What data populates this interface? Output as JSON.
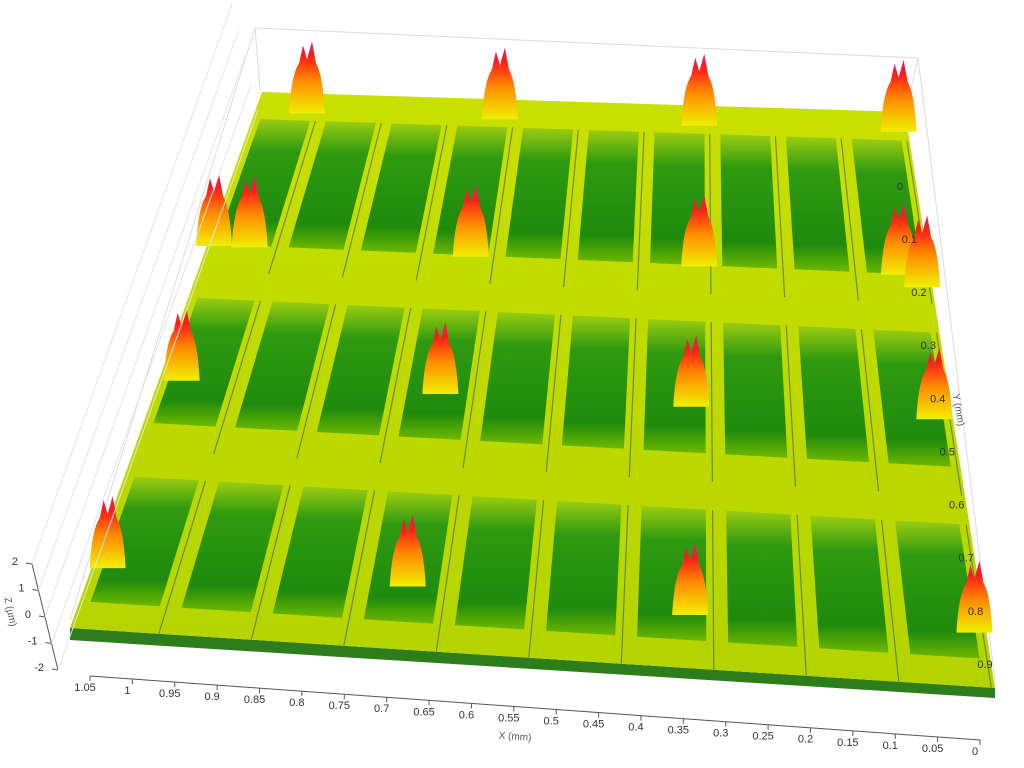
{
  "chart_data": {
    "type": "surface3d",
    "xlabel": "X (mm)",
    "ylabel": "Y (mm)",
    "zlabel": "Z (µm)",
    "xlim": [
      1.05,
      0
    ],
    "xticks": [
      1.05,
      1,
      0.95,
      0.9,
      0.85,
      0.8,
      0.75,
      0.7,
      0.65,
      0.6,
      0.55,
      0.5,
      0.45,
      0.4,
      0.35,
      0.3,
      0.25,
      0.2,
      0.15,
      0.1,
      0.05,
      0
    ],
    "ylim": [
      0,
      0.9
    ],
    "yticks": [
      0,
      0.1,
      0.2,
      0.3,
      0.4,
      0.5,
      0.6,
      0.7,
      0.8,
      0.9
    ],
    "zlim": [
      -2,
      2
    ],
    "zticks": [
      -2,
      -1,
      0,
      1,
      2
    ],
    "grid": true
  }
}
